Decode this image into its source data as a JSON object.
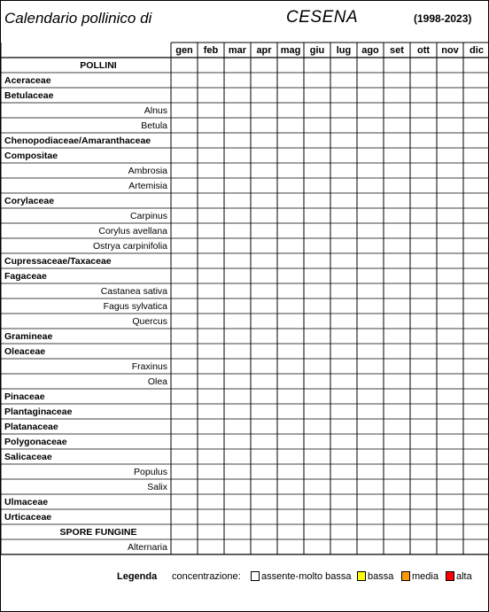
{
  "header": {
    "title_left": "Calendario pollinico di",
    "city": "CESENA",
    "years": "(1998-2023)"
  },
  "colors": {
    "assente": "#ffffff",
    "bassa": "#ffff00",
    "media": "#ff9900",
    "alta": "#ff0000"
  },
  "chart_data": {
    "type": "table",
    "months": [
      "gen",
      "feb",
      "mar",
      "apr",
      "mag",
      "giu",
      "lug",
      "ago",
      "set",
      "ott",
      "nov",
      "dic"
    ],
    "rows": [
      {
        "label": "POLLINI",
        "kind": "section",
        "cells": ""
      },
      {
        "label": "Aceraceae",
        "kind": "family",
        "cells": "..........................................."
      },
      {
        "label": "Betulaceae",
        "kind": "family",
        "cells": ""
      },
      {
        "label": "Alnus",
        "kind": "species",
        "cells": ""
      },
      {
        "label": "Betula",
        "kind": "species",
        "cells": ""
      },
      {
        "label": "Chenopodiaceae/Amaranthaceae",
        "kind": "family",
        "cells": ""
      },
      {
        "label": "Compositae",
        "kind": "family",
        "cells": ""
      },
      {
        "label": "Ambrosia",
        "kind": "species",
        "cells": ""
      },
      {
        "label": "Artemisia",
        "kind": "species",
        "cells": ""
      },
      {
        "label": "Corylaceae",
        "kind": "family",
        "cells": ""
      },
      {
        "label": "Carpinus",
        "kind": "species",
        "cells": ""
      },
      {
        "label": "Corylus avellana",
        "kind": "species",
        "cells": ""
      },
      {
        "label": "Ostrya carpinifolia",
        "kind": "species",
        "cells": ""
      },
      {
        "label": "Cupressaceae/Taxaceae",
        "kind": "family",
        "cells": ""
      },
      {
        "label": "Fagaceae",
        "kind": "family",
        "cells": ""
      },
      {
        "label": "Castanea sativa",
        "kind": "species",
        "cells": ""
      },
      {
        "label": "Fagus sylvatica",
        "kind": "species",
        "cells": ""
      },
      {
        "label": "Quercus",
        "kind": "species",
        "cells": ""
      },
      {
        "label": "Gramineae",
        "kind": "family",
        "cells": ""
      },
      {
        "label": "Oleaceae",
        "kind": "family",
        "cells": ""
      },
      {
        "label": "Fraxinus",
        "kind": "species",
        "cells": ""
      },
      {
        "label": "Olea",
        "kind": "species",
        "cells": ""
      },
      {
        "label": "Pinaceae",
        "kind": "family",
        "cells": ""
      },
      {
        "label": "Plantaginaceae",
        "kind": "family",
        "cells": ""
      },
      {
        "label": "Platanaceae",
        "kind": "family",
        "cells": ""
      },
      {
        "label": "Polygonaceae",
        "kind": "family",
        "cells": ""
      },
      {
        "label": "Salicaceae",
        "kind": "family",
        "cells": ""
      },
      {
        "label": "Populus",
        "kind": "species",
        "cells": ""
      },
      {
        "label": "Salix",
        "kind": "species",
        "cells": ""
      },
      {
        "label": "Ulmaceae",
        "kind": "family",
        "cells": ""
      },
      {
        "label": "Urticaceae",
        "kind": "family",
        "cells": ""
      },
      {
        "label": "SPORE FUNGINE",
        "kind": "section",
        "cells": ""
      },
      {
        "label": "Alternaria",
        "kind": "species",
        "cells": ""
      }
    ]
  },
  "legend": {
    "title": "Legenda",
    "prefix": "concentrazione:",
    "items": [
      {
        "label": "assente-molto bassa",
        "level": "assente"
      },
      {
        "label": "bassa",
        "level": "bassa"
      },
      {
        "label": "media",
        "level": "media"
      },
      {
        "label": "alta",
        "level": "alta"
      }
    ]
  }
}
